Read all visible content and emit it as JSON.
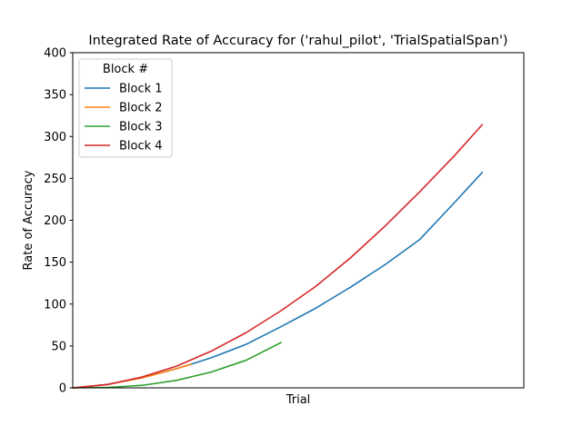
{
  "chart_data": {
    "type": "line",
    "title": "Integrated Rate of Accuracy for ('rahul_pilot', 'TrialSpatialSpan')",
    "xlabel": "Trial",
    "ylabel": "Rate of Accuracy",
    "ylim": [
      0,
      400
    ],
    "yticks": [
      0,
      50,
      100,
      150,
      200,
      250,
      300,
      350,
      400
    ],
    "xlim": [
      0,
      65
    ],
    "xticks": [],
    "grid": false,
    "legend": {
      "title": "Block #",
      "placement": "top-left"
    },
    "series": [
      {
        "name": "Block 1",
        "color": "#1f77b4",
        "x": [
          0,
          5,
          10,
          15,
          17,
          20,
          25,
          30,
          35,
          40,
          45,
          50,
          55,
          59
        ],
        "y": [
          0,
          4,
          12,
          23,
          28,
          36,
          52,
          73,
          95,
          120,
          147,
          177,
          221,
          257
        ]
      },
      {
        "name": "Block 2",
        "color": "#ff7f0e",
        "x": [
          0,
          5,
          10,
          15,
          17
        ],
        "y": [
          0,
          4,
          12,
          23,
          28
        ]
      },
      {
        "name": "Block 3",
        "color": "#2ca02c",
        "x": [
          0,
          5,
          10,
          15,
          20,
          25,
          30
        ],
        "y": [
          0,
          0.5,
          3,
          9,
          19,
          33,
          54
        ]
      },
      {
        "name": "Block 4",
        "color": "#d62728",
        "x": [
          0,
          5,
          10,
          15,
          20,
          25,
          30,
          35,
          40,
          45,
          50,
          55,
          59
        ],
        "y": [
          0,
          4,
          13,
          26,
          44,
          66,
          92,
          121,
          155,
          193,
          234,
          277,
          314
        ]
      }
    ]
  }
}
